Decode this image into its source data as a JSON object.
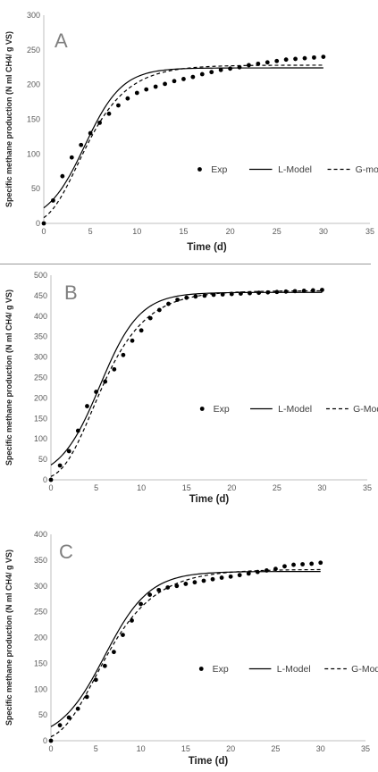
{
  "chart_data": [
    {
      "type": "line",
      "panel_label": "A",
      "xlabel": "Time (d)",
      "ylabel": "Specific methane production (N ml CH4/ g VS)",
      "xlim": [
        0,
        35
      ],
      "ylim": [
        0,
        300
      ],
      "xticks": [
        0,
        5,
        10,
        15,
        20,
        25,
        30,
        35
      ],
      "yticks": [
        0,
        50,
        100,
        150,
        200,
        250,
        300
      ],
      "legend_position": "center-right",
      "exp": {
        "name": "Exp",
        "x": [
          0,
          1,
          2,
          3,
          4,
          5,
          6,
          7,
          8,
          9,
          10,
          11,
          12,
          13,
          14,
          15,
          16,
          17,
          18,
          19,
          20,
          21,
          22,
          23,
          24,
          25,
          26,
          27,
          28,
          29,
          30
        ],
        "y": [
          0,
          33,
          68,
          95,
          113,
          130,
          145,
          158,
          170,
          180,
          188,
          193,
          197,
          201,
          205,
          208,
          211,
          215,
          218,
          221,
          223,
          225,
          228,
          230,
          232,
          234,
          236,
          237,
          238,
          239,
          240
        ]
      },
      "l_model": {
        "name": "L-Model",
        "ym": 224,
        "rm": 28,
        "lambda": 0.4
      },
      "g_model": {
        "name": "G-model",
        "ym": 228,
        "rm": 28,
        "lambda": 0.6
      }
    },
    {
      "type": "line",
      "panel_label": "B",
      "xlabel": "Time (d)",
      "ylabel": "Specific methane production (N ml CH4/ g VS)",
      "xlim": [
        0,
        35
      ],
      "ylim": [
        0,
        500
      ],
      "xticks": [
        0,
        5,
        10,
        15,
        20,
        25,
        30,
        35
      ],
      "yticks": [
        0,
        50,
        100,
        150,
        200,
        250,
        300,
        350,
        400,
        450,
        500
      ],
      "legend_position": "center-right",
      "exp": {
        "name": "Exp",
        "x": [
          0,
          1,
          2,
          3,
          4,
          5,
          6,
          7,
          8,
          9,
          10,
          11,
          12,
          13,
          14,
          15,
          16,
          17,
          18,
          19,
          20,
          21,
          22,
          23,
          24,
          25,
          26,
          27,
          28,
          29,
          30
        ],
        "y": [
          0,
          35,
          70,
          120,
          180,
          215,
          240,
          270,
          305,
          340,
          365,
          395,
          415,
          430,
          440,
          445,
          448,
          450,
          452,
          453,
          454,
          455,
          456,
          457,
          458,
          459,
          460,
          461,
          462,
          463,
          464
        ]
      },
      "l_model": {
        "name": "L-Model",
        "ym": 458,
        "rm": 52,
        "lambda": 1.0
      },
      "g_model": {
        "name": "G-Model",
        "ym": 462,
        "rm": 52,
        "lambda": 1.3
      }
    },
    {
      "type": "line",
      "panel_label": "C",
      "xlabel": "Time (d)",
      "ylabel": "Specific methane production (N ml CH4/ g VS)",
      "xlim": [
        0,
        35
      ],
      "ylim": [
        0,
        400
      ],
      "xticks": [
        0,
        5,
        10,
        15,
        20,
        25,
        30,
        35
      ],
      "yticks": [
        0,
        50,
        100,
        150,
        200,
        250,
        300,
        350,
        400
      ],
      "legend_position": "center-right",
      "exp": {
        "name": "Exp",
        "x": [
          0,
          1,
          2,
          3,
          4,
          5,
          6,
          7,
          8,
          9,
          10,
          11,
          12,
          13,
          14,
          15,
          16,
          17,
          18,
          19,
          20,
          21,
          22,
          23,
          24,
          25,
          26,
          27,
          28,
          29,
          30
        ],
        "y": [
          0,
          30,
          45,
          62,
          85,
          118,
          145,
          172,
          205,
          233,
          265,
          283,
          292,
          297,
          300,
          304,
          307,
          310,
          313,
          316,
          318,
          321,
          324,
          327,
          330,
          333,
          338,
          341,
          342,
          343,
          345
        ]
      },
      "l_model": {
        "name": "L-Model",
        "ym": 328,
        "rm": 33,
        "lambda": 1.0
      },
      "g_model": {
        "name": "G-Model",
        "ym": 332,
        "rm": 33,
        "lambda": 1.2
      }
    }
  ]
}
